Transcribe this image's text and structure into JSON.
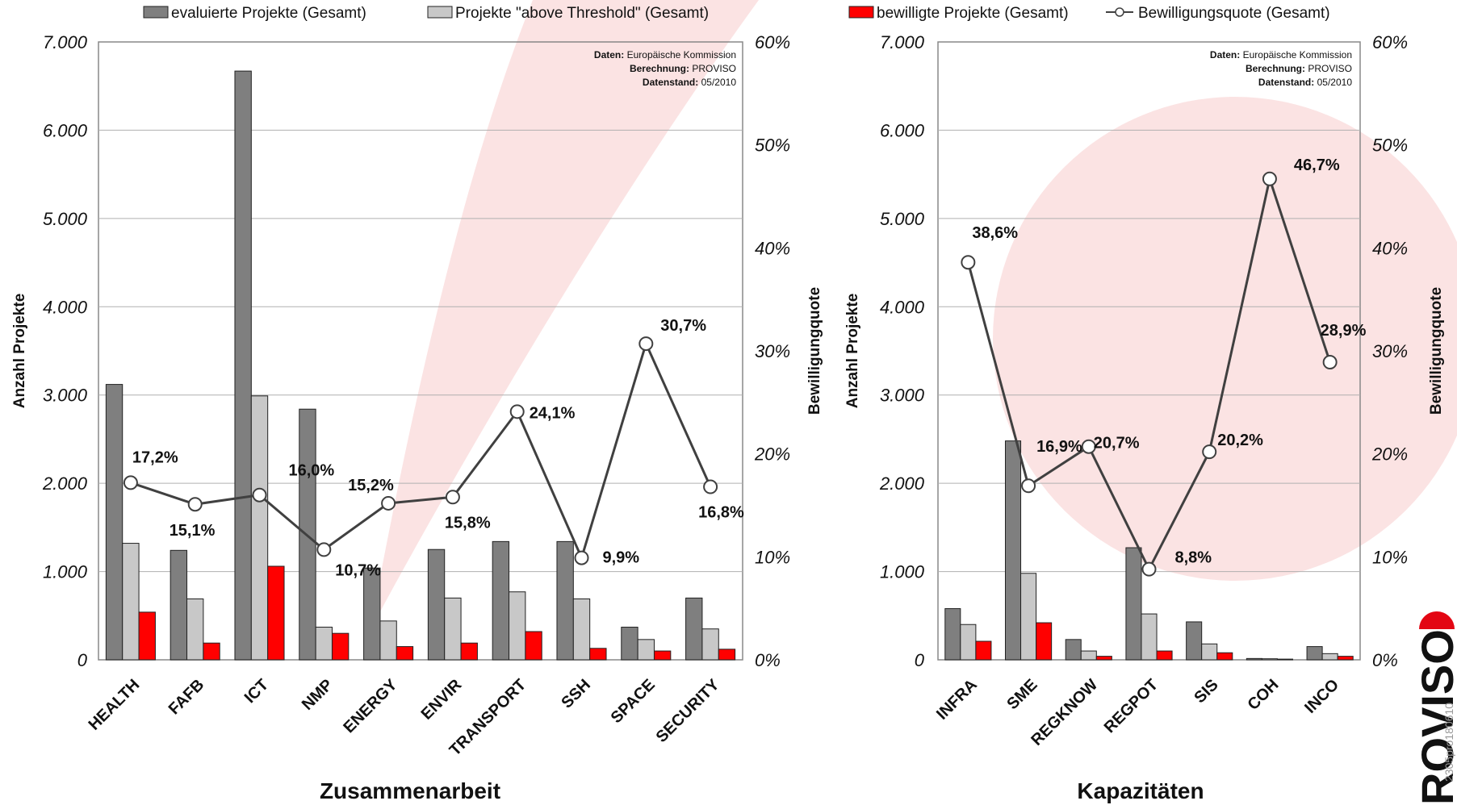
{
  "legend": [
    {
      "label": "evaluierte Projekte (Gesamt)",
      "kind": "bar",
      "color": "#7f7f7f"
    },
    {
      "label": "Projekte \"above Threshold\" (Gesamt)",
      "kind": "bar",
      "color": "#c8c8c8"
    },
    {
      "label": "bewilligte Projekte (Gesamt)",
      "kind": "bar",
      "color": "#ff0000"
    },
    {
      "label": "Bewilligungsquote (Gesamt)",
      "kind": "line",
      "color": "#404040"
    }
  ],
  "source": {
    "lines": [
      {
        "key": "Daten:",
        "value": "Europäische Kommission"
      },
      {
        "key": "Berechnung:",
        "value": "PROVISO"
      },
      {
        "key": "Datenstand:",
        "value": "05/2010"
      }
    ]
  },
  "logo": {
    "text": "ROVISO",
    "id": "2305pro180610"
  },
  "chart_data": [
    {
      "type": "bar",
      "title": "Zusammenarbeit",
      "xlabel": "Zusammenarbeit",
      "ylabel": "Anzahl Projekte",
      "y2label": "Bewilligungquote",
      "ylim": [
        0,
        7000
      ],
      "y2lim": [
        0,
        60
      ],
      "yticks": [
        "0",
        "1.000",
        "2.000",
        "3.000",
        "4.000",
        "5.000",
        "6.000",
        "7.000"
      ],
      "y2ticks": [
        "0%",
        "10%",
        "20%",
        "30%",
        "40%",
        "50%",
        "60%"
      ],
      "categories": [
        "HEALTH",
        "FAFB",
        "ICT",
        "NMP",
        "ENERGY",
        "ENVIR",
        "TRANSPORT",
        "SSH",
        "SPACE",
        "SECURITY"
      ],
      "series": [
        {
          "name": "evaluierte Projekte (Gesamt)",
          "values": [
            3120,
            1240,
            6670,
            2840,
            1040,
            1250,
            1340,
            1340,
            370,
            700
          ]
        },
        {
          "name": "Projekte \"above Threshold\" (Gesamt)",
          "values": [
            1320,
            690,
            2990,
            370,
            440,
            700,
            770,
            690,
            230,
            350
          ]
        },
        {
          "name": "bewilligte Projekte (Gesamt)",
          "values": [
            540,
            190,
            1060,
            300,
            150,
            190,
            320,
            130,
            100,
            120
          ]
        },
        {
          "name": "Bewilligungsquote (Gesamt)",
          "axis": "right",
          "values": [
            17.2,
            15.1,
            16.0,
            10.7,
            15.2,
            15.8,
            24.1,
            9.9,
            30.7,
            16.8
          ],
          "labels": [
            "17,2%",
            "15,1%",
            "16,0%",
            "10,7%",
            "15,2%",
            "15,8%",
            "24,1%",
            "9,9%",
            "30,7%",
            "16,8%"
          ]
        }
      ]
    },
    {
      "type": "bar",
      "title": "Kapazitäten",
      "xlabel": "Kapazitäten",
      "ylabel": "Anzahl Projekte",
      "y2label": "Bewilligungquote",
      "ylim": [
        0,
        7000
      ],
      "y2lim": [
        0,
        60
      ],
      "yticks": [
        "0",
        "1.000",
        "2.000",
        "3.000",
        "4.000",
        "5.000",
        "6.000",
        "7.000"
      ],
      "y2ticks": [
        "0%",
        "10%",
        "20%",
        "30%",
        "40%",
        "50%",
        "60%"
      ],
      "categories": [
        "INFRA",
        "SME",
        "REGKNOW",
        "REGPOT",
        "SIS",
        "COH",
        "INCO"
      ],
      "series": [
        {
          "name": "evaluierte Projekte (Gesamt)",
          "values": [
            580,
            2480,
            230,
            1270,
            430,
            15,
            150
          ]
        },
        {
          "name": "Projekte \"above Threshold\" (Gesamt)",
          "values": [
            400,
            980,
            100,
            520,
            180,
            12,
            70
          ]
        },
        {
          "name": "bewilligte Projekte (Gesamt)",
          "values": [
            210,
            420,
            40,
            100,
            80,
            8,
            40
          ]
        },
        {
          "name": "Bewilligungsquote (Gesamt)",
          "axis": "right",
          "values": [
            38.6,
            16.9,
            20.7,
            8.8,
            20.2,
            46.7,
            28.9
          ],
          "labels": [
            "38,6%",
            "16,9%",
            "20,7%",
            "8,8%",
            "20,2%",
            "46,7%",
            "28,9%"
          ]
        }
      ]
    }
  ]
}
